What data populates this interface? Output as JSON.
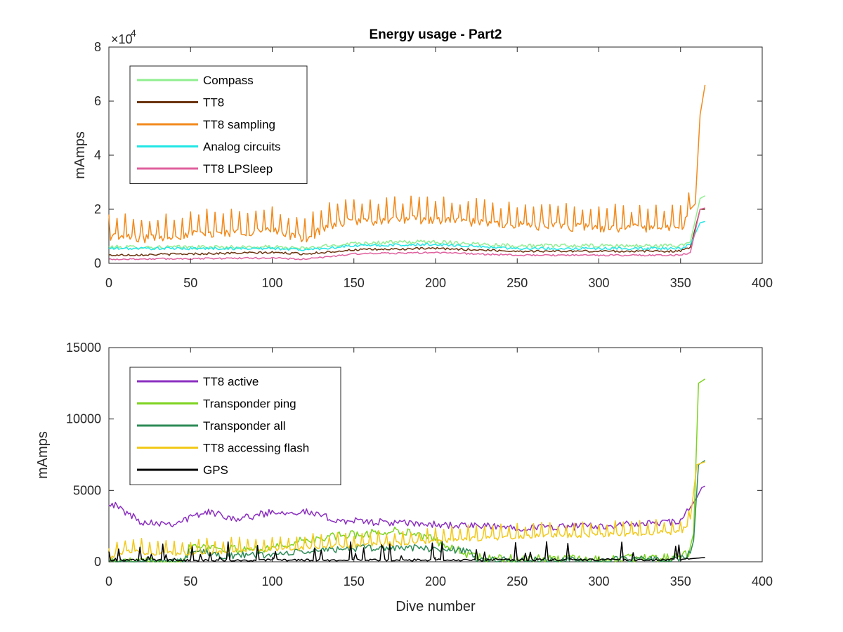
{
  "chart_data": [
    {
      "type": "line",
      "title": "Energy usage - Part2",
      "xlabel": "",
      "ylabel": "mAmps",
      "xlim": [
        0,
        400
      ],
      "ylim": [
        0,
        80000
      ],
      "y_exponent_label": "×10",
      "y_exponent_power": "4",
      "xticks": [
        "0",
        "50",
        "100",
        "150",
        "200",
        "250",
        "300",
        "350",
        "400"
      ],
      "yticks": [
        "0",
        "2",
        "4",
        "6",
        "8"
      ],
      "yticks_values": [
        0,
        20000,
        40000,
        60000,
        80000
      ],
      "legend_position": "top-left",
      "series": [
        {
          "name": "Compass",
          "color": "#90ee90",
          "base": 6000,
          "trend": [
            [
              0,
              6000
            ],
            [
              100,
              6000
            ],
            [
              120,
              5500
            ],
            [
              150,
              7500
            ],
            [
              200,
              8000
            ],
            [
              250,
              6500
            ],
            [
              300,
              6500
            ],
            [
              350,
              6500
            ],
            [
              356,
              8000
            ],
            [
              362,
              24000
            ],
            [
              365,
              25000
            ]
          ],
          "amp": 700,
          "spike": 0
        },
        {
          "name": "TT8",
          "color": "#6b3410",
          "base": 3500,
          "trend": [
            [
              0,
              3000
            ],
            [
              100,
              4000
            ],
            [
              120,
              3500
            ],
            [
              150,
              5000
            ],
            [
              200,
              5500
            ],
            [
              250,
              4500
            ],
            [
              300,
              4500
            ],
            [
              350,
              4500
            ],
            [
              356,
              6000
            ],
            [
              362,
              20000
            ],
            [
              365,
              20000
            ]
          ],
          "amp": 400,
          "spike": 0
        },
        {
          "name": "TT8 sampling",
          "color": "#f28a1c",
          "trend": [
            [
              0,
              12000
            ],
            [
              20,
              11000
            ],
            [
              60,
              13000
            ],
            [
              100,
              14000
            ],
            [
              120,
              11000
            ],
            [
              140,
              17000
            ],
            [
              180,
              18000
            ],
            [
              200,
              18000
            ],
            [
              250,
              16000
            ],
            [
              300,
              15000
            ],
            [
              350,
              15000
            ],
            [
              356,
              20000
            ],
            [
              359,
              22000
            ],
            [
              362,
              55000
            ],
            [
              365,
              66000
            ]
          ],
          "amp": 5500,
          "spike": 1
        },
        {
          "name": "Analog circuits",
          "color": "#22e6e6",
          "trend": [
            [
              0,
              5500
            ],
            [
              100,
              5500
            ],
            [
              120,
              5000
            ],
            [
              150,
              6500
            ],
            [
              200,
              7000
            ],
            [
              250,
              5500
            ],
            [
              300,
              5500
            ],
            [
              350,
              5500
            ],
            [
              356,
              7000
            ],
            [
              362,
              15000
            ],
            [
              365,
              15500
            ]
          ],
          "amp": 500,
          "spike": 0
        },
        {
          "name": "TT8 LPSleep",
          "color": "#e0609e",
          "trend": [
            [
              0,
              1500
            ],
            [
              100,
              2000
            ],
            [
              120,
              1500
            ],
            [
              150,
              3500
            ],
            [
              200,
              4000
            ],
            [
              250,
              3000
            ],
            [
              300,
              3000
            ],
            [
              350,
              3000
            ],
            [
              356,
              4000
            ],
            [
              362,
              20000
            ],
            [
              365,
              20500
            ]
          ],
          "amp": 300,
          "spike": 0
        }
      ]
    },
    {
      "type": "line",
      "title": "",
      "xlabel": "Dive number",
      "ylabel": "mAmps",
      "xlim": [
        0,
        400
      ],
      "ylim": [
        0,
        15000
      ],
      "xticks": [
        "0",
        "50",
        "100",
        "150",
        "200",
        "250",
        "300",
        "350",
        "400"
      ],
      "yticks": [
        "0",
        "5000",
        "10000",
        "15000"
      ],
      "yticks_values": [
        0,
        5000,
        10000,
        15000
      ],
      "legend_position": "top-left",
      "series": [
        {
          "name": "TT8 active",
          "color": "#8b2fc0",
          "trend": [
            [
              0,
              4200
            ],
            [
              20,
              2800
            ],
            [
              40,
              2700
            ],
            [
              60,
              3500
            ],
            [
              80,
              3000
            ],
            [
              100,
              3500
            ],
            [
              120,
              3500
            ],
            [
              140,
              2900
            ],
            [
              160,
              2800
            ],
            [
              180,
              2700
            ],
            [
              200,
              2600
            ],
            [
              250,
              2400
            ],
            [
              300,
              2500
            ],
            [
              350,
              2800
            ],
            [
              356,
              3800
            ],
            [
              360,
              4500
            ],
            [
              363,
              5200
            ],
            [
              365,
              5300
            ]
          ],
          "amp": 250,
          "spike": 0
        },
        {
          "name": "Transponder ping",
          "color": "#7ed321",
          "trend": [
            [
              0,
              0
            ],
            [
              45,
              0
            ],
            [
              50,
              1200
            ],
            [
              60,
              1100
            ],
            [
              80,
              800
            ],
            [
              100,
              1000
            ],
            [
              120,
              1500
            ],
            [
              140,
              1800
            ],
            [
              160,
              2000
            ],
            [
              180,
              2200
            ],
            [
              200,
              1500
            ],
            [
              220,
              500
            ],
            [
              230,
              200
            ],
            [
              300,
              200
            ],
            [
              350,
              300
            ],
            [
              355,
              600
            ],
            [
              358,
              2000
            ],
            [
              361,
              12500
            ],
            [
              365,
              12800
            ]
          ],
          "amp": 300,
          "spike": 0
        },
        {
          "name": "Transponder all",
          "color": "#2e8b57",
          "trend": [
            [
              0,
              0
            ],
            [
              45,
              0
            ],
            [
              50,
              800
            ],
            [
              70,
              400
            ],
            [
              100,
              500
            ],
            [
              140,
              900
            ],
            [
              180,
              1000
            ],
            [
              220,
              800
            ],
            [
              225,
              100
            ],
            [
              300,
              100
            ],
            [
              350,
              200
            ],
            [
              356,
              600
            ],
            [
              358,
              1500
            ],
            [
              361,
              6800
            ],
            [
              365,
              7100
            ]
          ],
          "amp": 250,
          "spike": 0
        },
        {
          "name": "TT8 accessing flash",
          "color": "#f2c91a",
          "trend": [
            [
              0,
              500
            ],
            [
              10,
              900
            ],
            [
              40,
              800
            ],
            [
              60,
              900
            ],
            [
              100,
              1100
            ],
            [
              140,
              1300
            ],
            [
              180,
              1500
            ],
            [
              220,
              1800
            ],
            [
              260,
              2000
            ],
            [
              300,
              2100
            ],
            [
              350,
              2300
            ],
            [
              356,
              3000
            ],
            [
              360,
              6800
            ],
            [
              365,
              7000
            ]
          ],
          "amp": 600,
          "spike": 1
        },
        {
          "name": "GPS",
          "color": "#000000",
          "trend": [
            [
              0,
              100
            ],
            [
              350,
              150
            ],
            [
              365,
              300
            ]
          ],
          "amp": 200,
          "spike": 2
        }
      ]
    }
  ]
}
